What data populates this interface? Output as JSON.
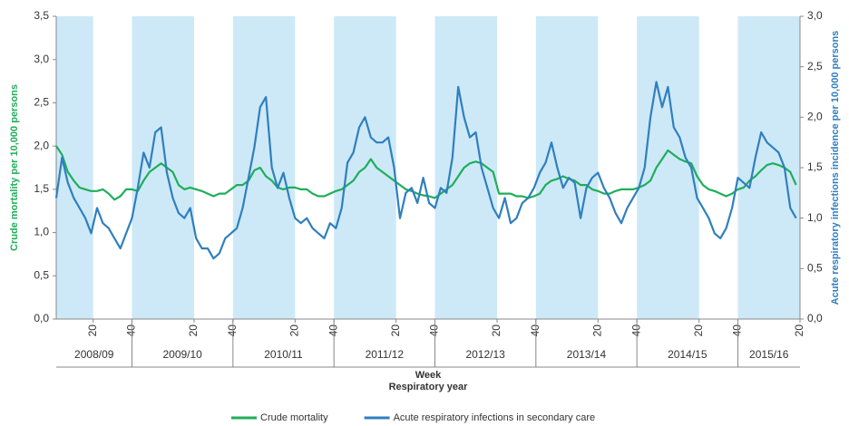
{
  "chart_data": {
    "type": "line",
    "xlabel": "Week",
    "xlabel2": "Respiratory year",
    "ylabel": "Crude mortality per 10,000 persons",
    "y2label": "Acute respiratory infections incidence per 10,000 persons",
    "xlim": [
      0,
      383
    ],
    "xticks": [
      {
        "value": 19,
        "label": "20"
      },
      {
        "value": 39,
        "label": "40"
      },
      {
        "value": 71,
        "label": "20"
      },
      {
        "value": 91,
        "label": "40"
      },
      {
        "value": 123,
        "label": "20"
      },
      {
        "value": 143,
        "label": "40"
      },
      {
        "value": 175,
        "label": "20"
      },
      {
        "value": 195,
        "label": "40"
      },
      {
        "value": 227,
        "label": "20"
      },
      {
        "value": 247,
        "label": "40"
      },
      {
        "value": 279,
        "label": "20"
      },
      {
        "value": 299,
        "label": "40"
      },
      {
        "value": 331,
        "label": "20"
      },
      {
        "value": 351,
        "label": "40"
      },
      {
        "value": 383,
        "label": "20"
      }
    ],
    "year_groups": [
      {
        "label": "2008/09",
        "start": 0,
        "end": 39
      },
      {
        "label": "2009/10",
        "start": 39,
        "end": 91
      },
      {
        "label": "2010/11",
        "start": 91,
        "end": 143
      },
      {
        "label": "2011/12",
        "start": 143,
        "end": 195
      },
      {
        "label": "2012/13",
        "start": 195,
        "end": 247
      },
      {
        "label": "2013/14",
        "start": 247,
        "end": 299
      },
      {
        "label": "2014/15",
        "start": 299,
        "end": 351
      },
      {
        "label": "2015/16",
        "start": 351,
        "end": 383
      }
    ],
    "shaded": [
      [
        0,
        19
      ],
      [
        39,
        71
      ],
      [
        91,
        123
      ],
      [
        143,
        175
      ],
      [
        195,
        227
      ],
      [
        247,
        279
      ],
      [
        299,
        331
      ],
      [
        351,
        383
      ]
    ],
    "shade_color": "#cde9f7",
    "ylim": [
      0,
      3.5
    ],
    "yticks": [
      {
        "value": 0,
        "label": "0,0"
      },
      {
        "value": 0.5,
        "label": "0,5"
      },
      {
        "value": 1,
        "label": "1,0"
      },
      {
        "value": 1.5,
        "label": "1,5"
      },
      {
        "value": 2,
        "label": "2,0"
      },
      {
        "value": 2.5,
        "label": "2,5"
      },
      {
        "value": 3,
        "label": "3,0"
      },
      {
        "value": 3.5,
        "label": "3,5"
      }
    ],
    "y2lim": [
      0,
      3.0
    ],
    "y2ticks": [
      {
        "value": 0,
        "label": "0,0"
      },
      {
        "value": 0.5,
        "label": "0,5"
      },
      {
        "value": 1,
        "label": "1,0"
      },
      {
        "value": 1.5,
        "label": "1,5"
      },
      {
        "value": 2,
        "label": "2,0"
      },
      {
        "value": 2.5,
        "label": "2,5"
      },
      {
        "value": 3,
        "label": "3,0"
      }
    ],
    "x": [
      0,
      3,
      6,
      9,
      12,
      15,
      18,
      21,
      24,
      27,
      30,
      33,
      36,
      39,
      42,
      45,
      48,
      51,
      54,
      57,
      60,
      63,
      66,
      69,
      72,
      75,
      78,
      81,
      84,
      87,
      90,
      93,
      96,
      99,
      102,
      105,
      108,
      111,
      114,
      117,
      120,
      123,
      126,
      129,
      132,
      135,
      138,
      141,
      144,
      147,
      150,
      153,
      156,
      159,
      162,
      165,
      168,
      171,
      174,
      177,
      180,
      183,
      186,
      189,
      192,
      195,
      198,
      201,
      204,
      207,
      210,
      213,
      216,
      219,
      222,
      225,
      228,
      231,
      234,
      237,
      240,
      243,
      246,
      249,
      252,
      255,
      258,
      261,
      264,
      267,
      270,
      273,
      276,
      279,
      282,
      285,
      288,
      291,
      294,
      297,
      300,
      303,
      306,
      309,
      312,
      315,
      318,
      321,
      324,
      327,
      330,
      333,
      336,
      339,
      342,
      345,
      348,
      351,
      354,
      357,
      360,
      363,
      366,
      369,
      372,
      375,
      378,
      381
    ],
    "series": [
      {
        "name": "Crude mortality",
        "color": "#1fae5a",
        "axis": "y",
        "values": [
          2.0,
          1.9,
          1.7,
          1.6,
          1.52,
          1.5,
          1.48,
          1.48,
          1.5,
          1.45,
          1.38,
          1.42,
          1.5,
          1.5,
          1.48,
          1.6,
          1.7,
          1.75,
          1.8,
          1.75,
          1.7,
          1.55,
          1.5,
          1.52,
          1.5,
          1.48,
          1.45,
          1.42,
          1.45,
          1.45,
          1.5,
          1.55,
          1.55,
          1.6,
          1.72,
          1.75,
          1.65,
          1.6,
          1.52,
          1.5,
          1.52,
          1.52,
          1.5,
          1.5,
          1.45,
          1.42,
          1.42,
          1.45,
          1.48,
          1.5,
          1.55,
          1.6,
          1.7,
          1.75,
          1.85,
          1.75,
          1.7,
          1.65,
          1.6,
          1.55,
          1.5,
          1.48,
          1.45,
          1.43,
          1.42,
          1.4,
          1.45,
          1.5,
          1.55,
          1.65,
          1.75,
          1.8,
          1.82,
          1.8,
          1.75,
          1.7,
          1.45,
          1.45,
          1.45,
          1.42,
          1.42,
          1.4,
          1.42,
          1.45,
          1.55,
          1.6,
          1.62,
          1.65,
          1.62,
          1.6,
          1.55,
          1.55,
          1.5,
          1.48,
          1.45,
          1.45,
          1.48,
          1.5,
          1.5,
          1.5,
          1.52,
          1.55,
          1.6,
          1.75,
          1.85,
          1.95,
          1.9,
          1.85,
          1.82,
          1.8,
          1.65,
          1.55,
          1.5,
          1.48,
          1.45,
          1.42,
          1.45,
          1.5,
          1.52,
          1.6,
          1.65,
          1.72,
          1.78,
          1.8,
          1.78,
          1.75,
          1.7,
          1.55
        ]
      },
      {
        "name": "Acute respiratory infections in secondary care",
        "color": "#2f7fbf",
        "axis": "y2",
        "values": [
          1.2,
          1.6,
          1.35,
          1.2,
          1.1,
          1.0,
          0.85,
          1.1,
          0.95,
          0.9,
          0.8,
          0.7,
          0.85,
          1.0,
          1.3,
          1.65,
          1.5,
          1.85,
          1.9,
          1.45,
          1.2,
          1.05,
          1.0,
          1.1,
          0.8,
          0.7,
          0.7,
          0.6,
          0.65,
          0.8,
          0.85,
          0.9,
          1.1,
          1.4,
          1.7,
          2.1,
          2.2,
          1.5,
          1.3,
          1.45,
          1.2,
          1.0,
          0.95,
          1.0,
          0.9,
          0.85,
          0.8,
          0.95,
          0.9,
          1.1,
          1.55,
          1.65,
          1.9,
          2.0,
          1.8,
          1.75,
          1.75,
          1.8,
          1.5,
          1.0,
          1.25,
          1.3,
          1.15,
          1.4,
          1.15,
          1.1,
          1.3,
          1.25,
          1.6,
          2.3,
          2.0,
          1.8,
          1.85,
          1.5,
          1.3,
          1.1,
          1.0,
          1.2,
          0.95,
          1.0,
          1.15,
          1.2,
          1.3,
          1.45,
          1.55,
          1.75,
          1.5,
          1.3,
          1.4,
          1.35,
          1.0,
          1.3,
          1.4,
          1.45,
          1.3,
          1.2,
          1.05,
          0.95,
          1.1,
          1.2,
          1.3,
          1.5,
          2.0,
          2.35,
          2.1,
          2.3,
          1.9,
          1.8,
          1.6,
          1.5,
          1.2,
          1.1,
          1.0,
          0.85,
          0.8,
          0.9,
          1.1,
          1.4,
          1.35,
          1.3,
          1.6,
          1.85,
          1.75,
          1.7,
          1.65,
          1.5,
          1.1,
          1.0
        ]
      }
    ]
  }
}
